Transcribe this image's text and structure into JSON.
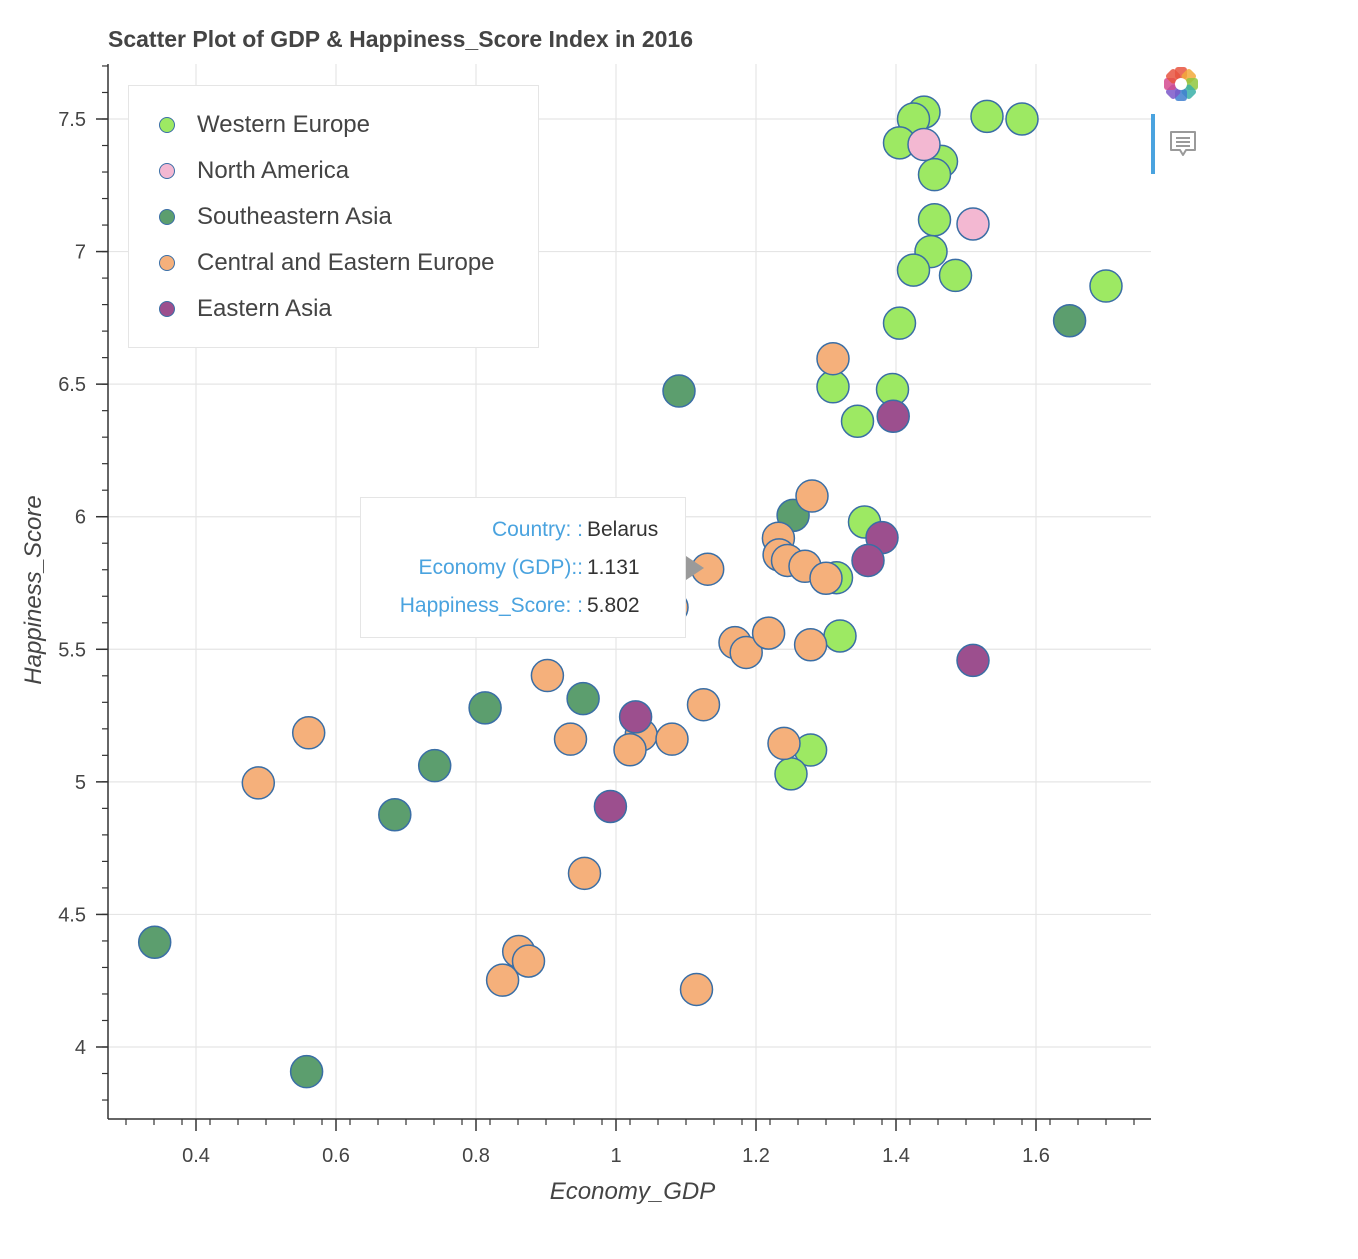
{
  "chart_data": {
    "type": "scatter",
    "title": "Scatter Plot of GDP & Happiness_Score Index in 2016",
    "xlabel": "Economy_GDP",
    "ylabel": "Happiness_Score",
    "xlim": [
      0.28,
      1.77
    ],
    "ylim": [
      3.73,
      7.7
    ],
    "x_ticks": [
      "0.4",
      "0.6",
      "0.8",
      "1",
      "1.2",
      "1.4",
      "1.6"
    ],
    "y_ticks": [
      "4",
      "4.5",
      "5",
      "5.5",
      "6",
      "6.5",
      "7",
      "7.5"
    ],
    "legend_position": "top-left",
    "grid": true,
    "series": [
      {
        "name": "Western Europe",
        "color": "#9de963",
        "x": [
          1.44,
          1.425,
          1.53,
          1.58,
          1.405,
          1.465,
          1.455,
          1.455,
          1.45,
          1.425,
          1.485,
          1.7,
          1.405,
          1.31,
          1.395,
          1.345,
          1.355,
          1.315,
          1.32,
          1.278,
          1.25
        ],
        "y": [
          7.526,
          7.5,
          7.51,
          7.5,
          7.41,
          7.34,
          7.29,
          7.12,
          7.0,
          6.93,
          6.91,
          6.87,
          6.73,
          6.49,
          6.48,
          6.36,
          5.98,
          5.77,
          5.55,
          5.12,
          5.03
        ]
      },
      {
        "name": "North America",
        "color": "#f3b8d2",
        "x": [
          1.44,
          1.51
        ],
        "y": [
          7.404,
          7.104
        ]
      },
      {
        "name": "Southeastern Asia",
        "color": "#5c9e6e",
        "x": [
          1.648,
          1.09,
          1.253,
          0.813,
          0.953,
          0.741,
          0.684,
          0.341,
          0.558
        ],
        "y": [
          6.739,
          6.474,
          6.005,
          5.279,
          5.314,
          5.061,
          4.876,
          4.395,
          3.907
        ]
      },
      {
        "name": "Central and Eastern Europe",
        "color": "#f5b07b",
        "x": [
          1.31,
          1.28,
          1.232,
          1.233,
          1.245,
          1.27,
          1.3,
          1.131,
          1.08,
          1.17,
          1.186,
          1.218,
          1.278,
          0.902,
          1.125,
          0.935,
          1.036,
          1.02,
          1.08,
          1.24,
          0.561,
          0.489,
          0.955,
          0.861,
          0.875,
          0.838,
          1.115,
          0.735,
          0.693
        ],
        "y": [
          6.596,
          6.078,
          5.919,
          5.856,
          5.835,
          5.813,
          5.768,
          5.802,
          5.658,
          5.525,
          5.488,
          5.561,
          5.517,
          5.401,
          5.291,
          5.161,
          5.177,
          5.121,
          5.161,
          5.145,
          5.185,
          4.996,
          4.655,
          4.36,
          4.324,
          4.252,
          4.217,
          5.987,
          5.897
        ]
      },
      {
        "name": "Eastern Asia",
        "color": "#9c4f8e",
        "x": [
          1.396,
          1.38,
          1.36,
          1.51,
          1.028,
          0.992
        ],
        "y": [
          6.379,
          5.921,
          5.835,
          5.458,
          5.245,
          4.907
        ]
      }
    ]
  },
  "tooltip": {
    "rows": [
      {
        "key": "Country: :",
        "value": "Belarus"
      },
      {
        "key": "Economy (GDP)::",
        "value": "1.131"
      },
      {
        "key": "Happiness_Score: :",
        "value": "5.802"
      }
    ]
  },
  "toolbar": {
    "logo_icon": "bokeh-logo-icon",
    "hover_icon": "hover-tool-icon"
  }
}
